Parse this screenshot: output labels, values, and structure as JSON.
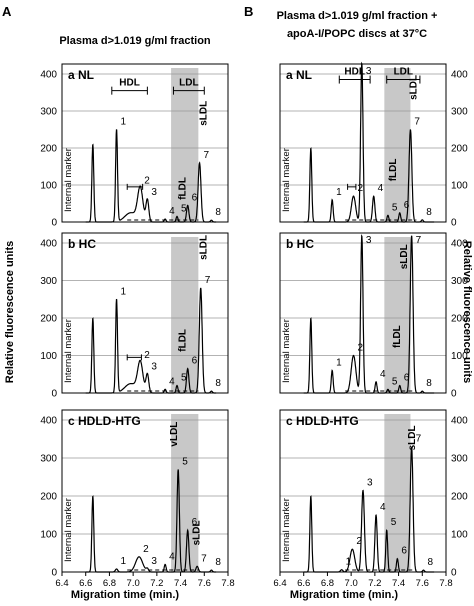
{
  "figure": {
    "column_letters": [
      "A",
      "B"
    ],
    "column_titles": [
      [
        "Plasma d>1.019 g/ml fraction"
      ],
      [
        "Plasma d>1.019 g/ml fraction +",
        "apoA-I/POPC discs at 37°C"
      ]
    ],
    "left_ylabel": "Relative fluorescence units",
    "right_ylabel": "Relative fluorescence units",
    "xlabel": "Migration time (min.)",
    "colors": {
      "trace": "#000000",
      "shade": "#c8c8c8",
      "grid": "#9a9a9a"
    }
  },
  "chart_data": [
    {
      "type": "line",
      "column": "A",
      "panel_label": "a NL",
      "ylim": [
        0,
        400
      ],
      "xlim": [
        6.4,
        7.8
      ],
      "grid": true,
      "yticks": [
        100,
        200,
        300,
        400
      ],
      "internal_marker": "Internal marker",
      "shaded_region": [
        7.32,
        7.55
      ],
      "ranges": [
        {
          "label": "HDL",
          "from": 6.82,
          "to": 7.12
        },
        {
          "label": "LDL",
          "from": 7.34,
          "to": 7.6
        }
      ],
      "range_markers": [
        {
          "label": "2",
          "from": 6.95,
          "to": 7.08
        }
      ],
      "band_labels": [
        {
          "text": "fLDL",
          "x": 7.44,
          "y": 60
        },
        {
          "text": "sLDL",
          "x": 7.62,
          "y": 260
        }
      ],
      "peaks": [
        {
          "x": 6.66,
          "y": 210,
          "w": 0.008
        },
        {
          "x": 6.86,
          "y": 250,
          "w": 0.008,
          "label": "1"
        },
        {
          "x": 6.98,
          "y": 25,
          "w": 0.05
        },
        {
          "x": 7.06,
          "y": 90,
          "w": 0.022,
          "label": "2"
        },
        {
          "x": 7.12,
          "y": 60,
          "w": 0.012,
          "label": "3"
        },
        {
          "x": 7.27,
          "y": 8,
          "w": 0.008,
          "label": "4"
        },
        {
          "x": 7.37,
          "y": 15,
          "w": 0.008,
          "label": "5"
        },
        {
          "x": 7.46,
          "y": 45,
          "w": 0.01,
          "label": "6"
        },
        {
          "x": 7.56,
          "y": 160,
          "w": 0.012,
          "label": "7"
        },
        {
          "x": 7.66,
          "y": 5,
          "w": 0.008,
          "label": "8"
        }
      ]
    },
    {
      "type": "line",
      "column": "A",
      "panel_label": "b HC",
      "ylim": [
        0,
        400
      ],
      "xlim": [
        6.4,
        7.8
      ],
      "grid": true,
      "yticks": [
        100,
        200,
        300,
        400
      ],
      "internal_marker": "Internal marker",
      "shaded_region": [
        7.32,
        7.55
      ],
      "ranges": [],
      "range_markers": [
        {
          "label": "2",
          "from": 6.95,
          "to": 7.07
        }
      ],
      "band_labels": [
        {
          "text": "fLDL",
          "x": 7.44,
          "y": 110
        },
        {
          "text": "sLDL",
          "x": 7.62,
          "y": 355
        }
      ],
      "peaks": [
        {
          "x": 6.66,
          "y": 200,
          "w": 0.008
        },
        {
          "x": 6.86,
          "y": 250,
          "w": 0.008,
          "label": "1"
        },
        {
          "x": 6.98,
          "y": 25,
          "w": 0.05
        },
        {
          "x": 7.06,
          "y": 80,
          "w": 0.022,
          "label": "2"
        },
        {
          "x": 7.12,
          "y": 50,
          "w": 0.012,
          "label": "3"
        },
        {
          "x": 7.27,
          "y": 10,
          "w": 0.008,
          "label": "4"
        },
        {
          "x": 7.37,
          "y": 20,
          "w": 0.008,
          "label": "5"
        },
        {
          "x": 7.46,
          "y": 65,
          "w": 0.01,
          "label": "6"
        },
        {
          "x": 7.57,
          "y": 280,
          "w": 0.012,
          "label": "7"
        },
        {
          "x": 7.66,
          "y": 5,
          "w": 0.008,
          "label": "8"
        }
      ]
    },
    {
      "type": "line",
      "column": "A",
      "panel_label": "c HDLD-HTG",
      "ylim": [
        0,
        400
      ],
      "xlim": [
        6.4,
        7.8
      ],
      "grid": true,
      "yticks": [
        100,
        200,
        300,
        400
      ],
      "internal_marker": "Internal marker",
      "shaded_region": [
        7.32,
        7.55
      ],
      "ranges": [],
      "range_markers": [],
      "band_labels": [
        {
          "text": "vLDL",
          "x": 7.37,
          "y": 330
        },
        {
          "text": "sLDL",
          "x": 7.56,
          "y": 70
        }
      ],
      "peaks": [
        {
          "x": 6.66,
          "y": 200,
          "w": 0.008
        },
        {
          "x": 6.86,
          "y": 8,
          "w": 0.01,
          "label": "1"
        },
        {
          "x": 7.05,
          "y": 40,
          "w": 0.03,
          "label": "2"
        },
        {
          "x": 7.12,
          "y": 8,
          "w": 0.01,
          "label": "3"
        },
        {
          "x": 7.27,
          "y": 20,
          "w": 0.008,
          "label": "4"
        },
        {
          "x": 7.38,
          "y": 270,
          "w": 0.01,
          "label": "5"
        },
        {
          "x": 7.46,
          "y": 110,
          "w": 0.01,
          "label": "6"
        },
        {
          "x": 7.54,
          "y": 15,
          "w": 0.01,
          "label": "7"
        },
        {
          "x": 7.66,
          "y": 5,
          "w": 0.008,
          "label": "8"
        }
      ]
    },
    {
      "type": "line",
      "column": "B",
      "panel_label": "a NL",
      "ylim": [
        0,
        400
      ],
      "xlim": [
        6.4,
        7.8
      ],
      "grid": true,
      "yticks": [
        100,
        200,
        300,
        400
      ],
      "internal_marker": "Internal marker",
      "shaded_region": [
        7.28,
        7.5
      ],
      "ranges": [
        {
          "label": "HDL",
          "from": 6.9,
          "to": 7.16
        },
        {
          "label": "LDL",
          "from": 7.3,
          "to": 7.58
        }
      ],
      "range_markers": [
        {
          "label": "2",
          "from": 6.97,
          "to": 7.04
        }
      ],
      "band_labels": [
        {
          "text": "fLDL",
          "x": 7.38,
          "y": 110
        },
        {
          "text": "sLDL",
          "x": 7.55,
          "y": 330
        }
      ],
      "peaks": [
        {
          "x": 6.66,
          "y": 200,
          "w": 0.008
        },
        {
          "x": 6.84,
          "y": 60,
          "w": 0.008,
          "label": "1"
        },
        {
          "x": 7.02,
          "y": 70,
          "w": 0.018,
          "label": "2"
        },
        {
          "x": 7.09,
          "y": 430,
          "w": 0.01,
          "label": "3"
        },
        {
          "x": 7.19,
          "y": 70,
          "w": 0.01,
          "label": "4"
        },
        {
          "x": 7.31,
          "y": 18,
          "w": 0.008,
          "label": "5"
        },
        {
          "x": 7.41,
          "y": 25,
          "w": 0.008,
          "label": "6"
        },
        {
          "x": 7.5,
          "y": 250,
          "w": 0.012,
          "label": "7"
        },
        {
          "x": 7.6,
          "y": 6,
          "w": 0.008,
          "label": "8"
        }
      ]
    },
    {
      "type": "line",
      "column": "B",
      "panel_label": "b HC",
      "ylim": [
        0,
        400
      ],
      "xlim": [
        6.4,
        7.8
      ],
      "grid": true,
      "yticks": [
        100,
        200,
        300,
        400
      ],
      "internal_marker": "Internal marker",
      "shaded_region": [
        7.28,
        7.5
      ],
      "ranges": [],
      "range_markers": [],
      "band_labels": [
        {
          "text": "fLDL",
          "x": 7.41,
          "y": 120
        },
        {
          "text": "sLDL",
          "x": 7.47,
          "y": 330
        }
      ],
      "peaks": [
        {
          "x": 6.66,
          "y": 200,
          "w": 0.008
        },
        {
          "x": 6.84,
          "y": 60,
          "w": 0.008,
          "label": "1"
        },
        {
          "x": 7.02,
          "y": 100,
          "w": 0.02,
          "label": "2"
        },
        {
          "x": 7.09,
          "y": 420,
          "w": 0.01,
          "label": "3"
        },
        {
          "x": 7.21,
          "y": 30,
          "w": 0.008,
          "label": "4"
        },
        {
          "x": 7.31,
          "y": 10,
          "w": 0.008,
          "label": "5"
        },
        {
          "x": 7.41,
          "y": 20,
          "w": 0.008,
          "label": "6"
        },
        {
          "x": 7.51,
          "y": 420,
          "w": 0.012,
          "label": "7"
        },
        {
          "x": 7.6,
          "y": 5,
          "w": 0.008,
          "label": "8"
        }
      ]
    },
    {
      "type": "line",
      "column": "B",
      "panel_label": "c HDLD-HTG",
      "ylim": [
        0,
        400
      ],
      "xlim": [
        6.4,
        7.8
      ],
      "grid": true,
      "yticks": [
        100,
        200,
        300,
        400
      ],
      "internal_marker": "Internal marker",
      "shaded_region": [
        7.28,
        7.5
      ],
      "ranges": [],
      "range_markers": [],
      "band_labels": [
        {
          "text": "sLDL",
          "x": 7.54,
          "y": 320
        }
      ],
      "peaks": [
        {
          "x": 6.66,
          "y": 200,
          "w": 0.008
        },
        {
          "x": 6.92,
          "y": 6,
          "w": 0.01,
          "label": "1"
        },
        {
          "x": 7.01,
          "y": 60,
          "w": 0.02,
          "label": "2"
        },
        {
          "x": 7.1,
          "y": 215,
          "w": 0.012,
          "label": "3"
        },
        {
          "x": 7.21,
          "y": 150,
          "w": 0.01,
          "label": "4"
        },
        {
          "x": 7.3,
          "y": 110,
          "w": 0.008,
          "label": "5"
        },
        {
          "x": 7.39,
          "y": 35,
          "w": 0.008,
          "label": "6"
        },
        {
          "x": 7.51,
          "y": 330,
          "w": 0.012,
          "label": "7"
        },
        {
          "x": 7.61,
          "y": 5,
          "w": 0.008,
          "label": "8"
        }
      ]
    }
  ]
}
